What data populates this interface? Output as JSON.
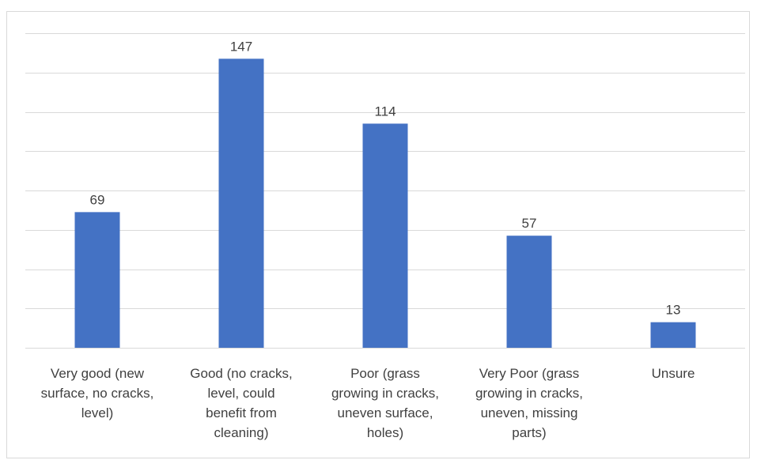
{
  "chart_data": {
    "type": "bar",
    "title": "",
    "xlabel": "",
    "ylabel": "",
    "categories": [
      "Very good (new surface, no cracks, level)",
      "Good (no cracks, level, could benefit from cleaning)",
      "Poor (grass growing in cracks, uneven surface, holes)",
      "Very Poor (grass growing in cracks, uneven, missing parts)",
      "Unsure"
    ],
    "category_lines": [
      [
        "Very good (new",
        "surface, no cracks,",
        "level)"
      ],
      [
        "Good (no cracks,",
        "level, could",
        "benefit from",
        "cleaning)"
      ],
      [
        "Poor (grass",
        "growing in cracks,",
        "uneven surface,",
        "holes)"
      ],
      [
        "Very Poor (grass",
        "growing in cracks,",
        "uneven, missing",
        "parts)"
      ],
      [
        "Unsure"
      ]
    ],
    "values": [
      69,
      147,
      114,
      57,
      13
    ],
    "ylim": [
      0,
      160
    ],
    "y_grid_step": 20,
    "grid": true,
    "y_axis_labels_shown": false,
    "legend": "none",
    "bar_color": "#4472c4"
  }
}
